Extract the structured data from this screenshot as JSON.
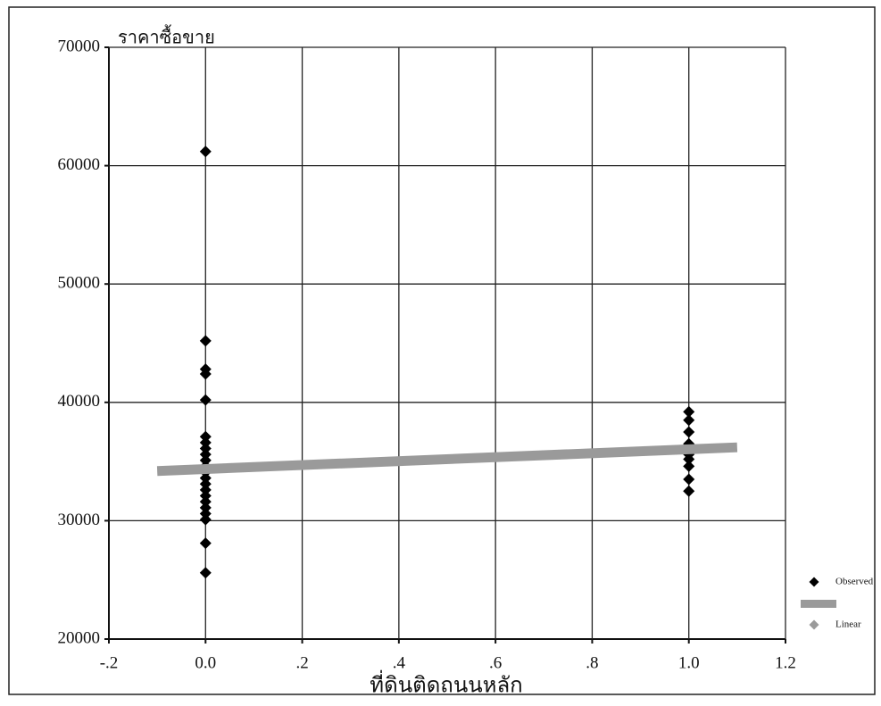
{
  "chart_data": {
    "type": "scatter",
    "y_label": "ราคาซื้อขาย",
    "x_label": "ที่ดินติดถนนหลัก",
    "xlim": [
      -0.2,
      1.2
    ],
    "xticks": [
      {
        "value": -0.2,
        "label": "-.2"
      },
      {
        "value": 0,
        "label": "0.0"
      },
      {
        "value": 0.2,
        "label": ".2"
      },
      {
        "value": 0.4,
        "label": ".4"
      },
      {
        "value": 0.6,
        "label": ".6"
      },
      {
        "value": 0.8,
        "label": ".8"
      },
      {
        "value": 1,
        "label": "1.0"
      },
      {
        "value": 1.2,
        "label": "1.2"
      }
    ],
    "ylim": [
      20000,
      70000
    ],
    "yticks": [
      20000,
      30000,
      40000,
      50000,
      60000,
      70000
    ],
    "grid": true,
    "legend": "right",
    "series": [
      {
        "name": "Observed",
        "color": "#000000",
        "marker": "diamond",
        "x": [
          0,
          0,
          0,
          0,
          0,
          0,
          0,
          0,
          0,
          0,
          0,
          0,
          0,
          0,
          0,
          0,
          0,
          0,
          0,
          0,
          0,
          0,
          1,
          1,
          1,
          1,
          1,
          1,
          1,
          1,
          1,
          1
        ],
        "values": [
          61200,
          45200,
          42800,
          42400,
          40200,
          37100,
          36600,
          36100,
          35600,
          35100,
          34600,
          34100,
          33600,
          33100,
          32600,
          32100,
          31600,
          31100,
          30600,
          30100,
          28100,
          25600,
          39200,
          38500,
          37500,
          36500,
          36000,
          35600,
          35200,
          34600,
          33500,
          32500
        ]
      },
      {
        "name": "Linear",
        "color": "#9a9a9a",
        "marker": "line",
        "x": [
          -0.1,
          1.1
        ],
        "values": [
          34200,
          36200
        ]
      }
    ]
  }
}
